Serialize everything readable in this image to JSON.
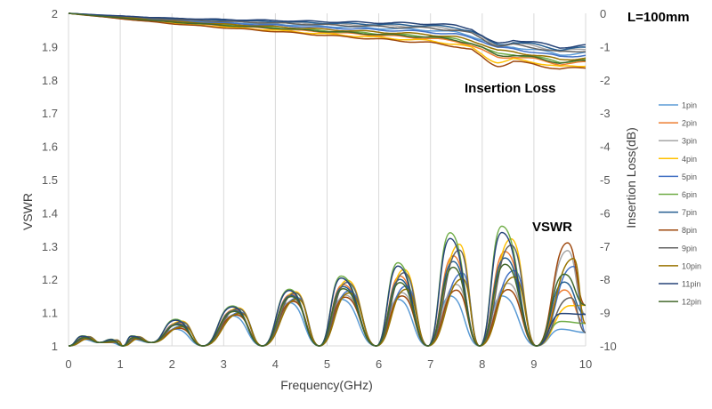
{
  "chart_data": {
    "type": "line",
    "xlabel": "Frequency(GHz)",
    "ylabel_left": "VSWR",
    "ylabel_right": "Insertion Loss(dB)",
    "xlim": [
      0,
      10
    ],
    "ylim_left": [
      1,
      2
    ],
    "ylim_right": [
      -10,
      0
    ],
    "x_ticks": [
      "0",
      "1",
      "2",
      "3",
      "4",
      "5",
      "6",
      "7",
      "8",
      "9",
      "10"
    ],
    "y_left_ticks": [
      "1",
      "1.1",
      "1.2",
      "1.3",
      "1.4",
      "1.5",
      "1.6",
      "1.7",
      "1.8",
      "1.9",
      "2"
    ],
    "y_right_ticks": [
      "0",
      "-1",
      "-2",
      "-3",
      "-4",
      "-5",
      "-6",
      "-7",
      "-8",
      "-9",
      "-10"
    ],
    "grid": "vertical",
    "legend_position": "right",
    "annotations": {
      "length": "L=100mm",
      "insertion_loss": "Insertion Loss",
      "vswr": "VSWR"
    },
    "insertion_loss_base": {
      "x": [
        0,
        1,
        2,
        3,
        4,
        5,
        6,
        7,
        7.5,
        8,
        8.3,
        8.5,
        9,
        9.5,
        10
      ],
      "y": [
        0,
        -0.12,
        -0.23,
        -0.31,
        -0.38,
        -0.46,
        -0.53,
        -0.6,
        -0.68,
        -0.85,
        -1.05,
        -1.1,
        -1.2,
        -1.35,
        -1.3
      ]
    },
    "insertion_loss_spread_db": [
      0.05,
      -0.08,
      0.1,
      -0.12,
      0.02,
      -0.05,
      0.12,
      -0.15,
      0.08,
      -0.02,
      0.15,
      -0.06
    ],
    "vswr_peaks": {
      "x": [
        0.35,
        0.9,
        1.3,
        2.15,
        3.25,
        4.35,
        5.35,
        6.45,
        7.5,
        8.5,
        9.65
      ],
      "max": [
        1.03,
        1.02,
        1.03,
        1.08,
        1.12,
        1.17,
        1.21,
        1.25,
        1.34,
        1.36,
        1.31
      ],
      "min": [
        1.02,
        1.01,
        1.02,
        1.05,
        1.09,
        1.13,
        1.14,
        1.14,
        1.15,
        1.15,
        1.05
      ]
    },
    "vswr_nulls_x": [
      0,
      0.6,
      1.05,
      1.6,
      2.6,
      3.75,
      4.85,
      5.95,
      6.95,
      7.95,
      9.05,
      10
    ],
    "vswr_null_values": [
      1,
      1.01,
      1,
      1.01,
      1,
      1,
      1,
      1,
      1,
      1,
      1,
      1.1
    ],
    "series": [
      {
        "name": "1pin",
        "color": "#5b9bd5"
      },
      {
        "name": "2pin",
        "color": "#ed7d31"
      },
      {
        "name": "3pin",
        "color": "#a5a5a5"
      },
      {
        "name": "4pin",
        "color": "#ffc000"
      },
      {
        "name": "5pin",
        "color": "#4472c4"
      },
      {
        "name": "6pin",
        "color": "#70ad47"
      },
      {
        "name": "7pin",
        "color": "#255e91"
      },
      {
        "name": "8pin",
        "color": "#9e480e"
      },
      {
        "name": "9pin",
        "color": "#636363"
      },
      {
        "name": "10pin",
        "color": "#997300"
      },
      {
        "name": "11pin",
        "color": "#264478"
      },
      {
        "name": "12pin",
        "color": "#43682b"
      }
    ]
  }
}
